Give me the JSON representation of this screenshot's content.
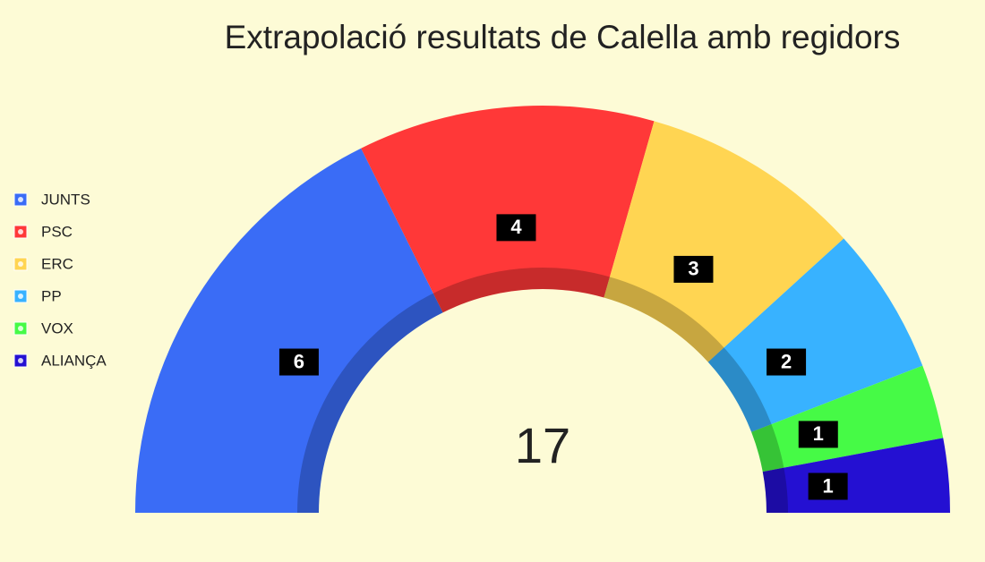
{
  "chart_data": {
    "type": "half-donut",
    "title": "Extrapolació resultats de Calella amb regidors",
    "categories": [
      "JUNTS",
      "PSC",
      "ERC",
      "PP",
      "VOX",
      "ALIANÇA"
    ],
    "values": [
      6,
      4,
      3,
      2,
      1,
      1
    ],
    "colors": [
      "#3a6cf6",
      "#ff3838",
      "#ffd552",
      "#38b2ff",
      "#46fa46",
      "#2410d2"
    ],
    "total": 17,
    "legend": "left"
  }
}
